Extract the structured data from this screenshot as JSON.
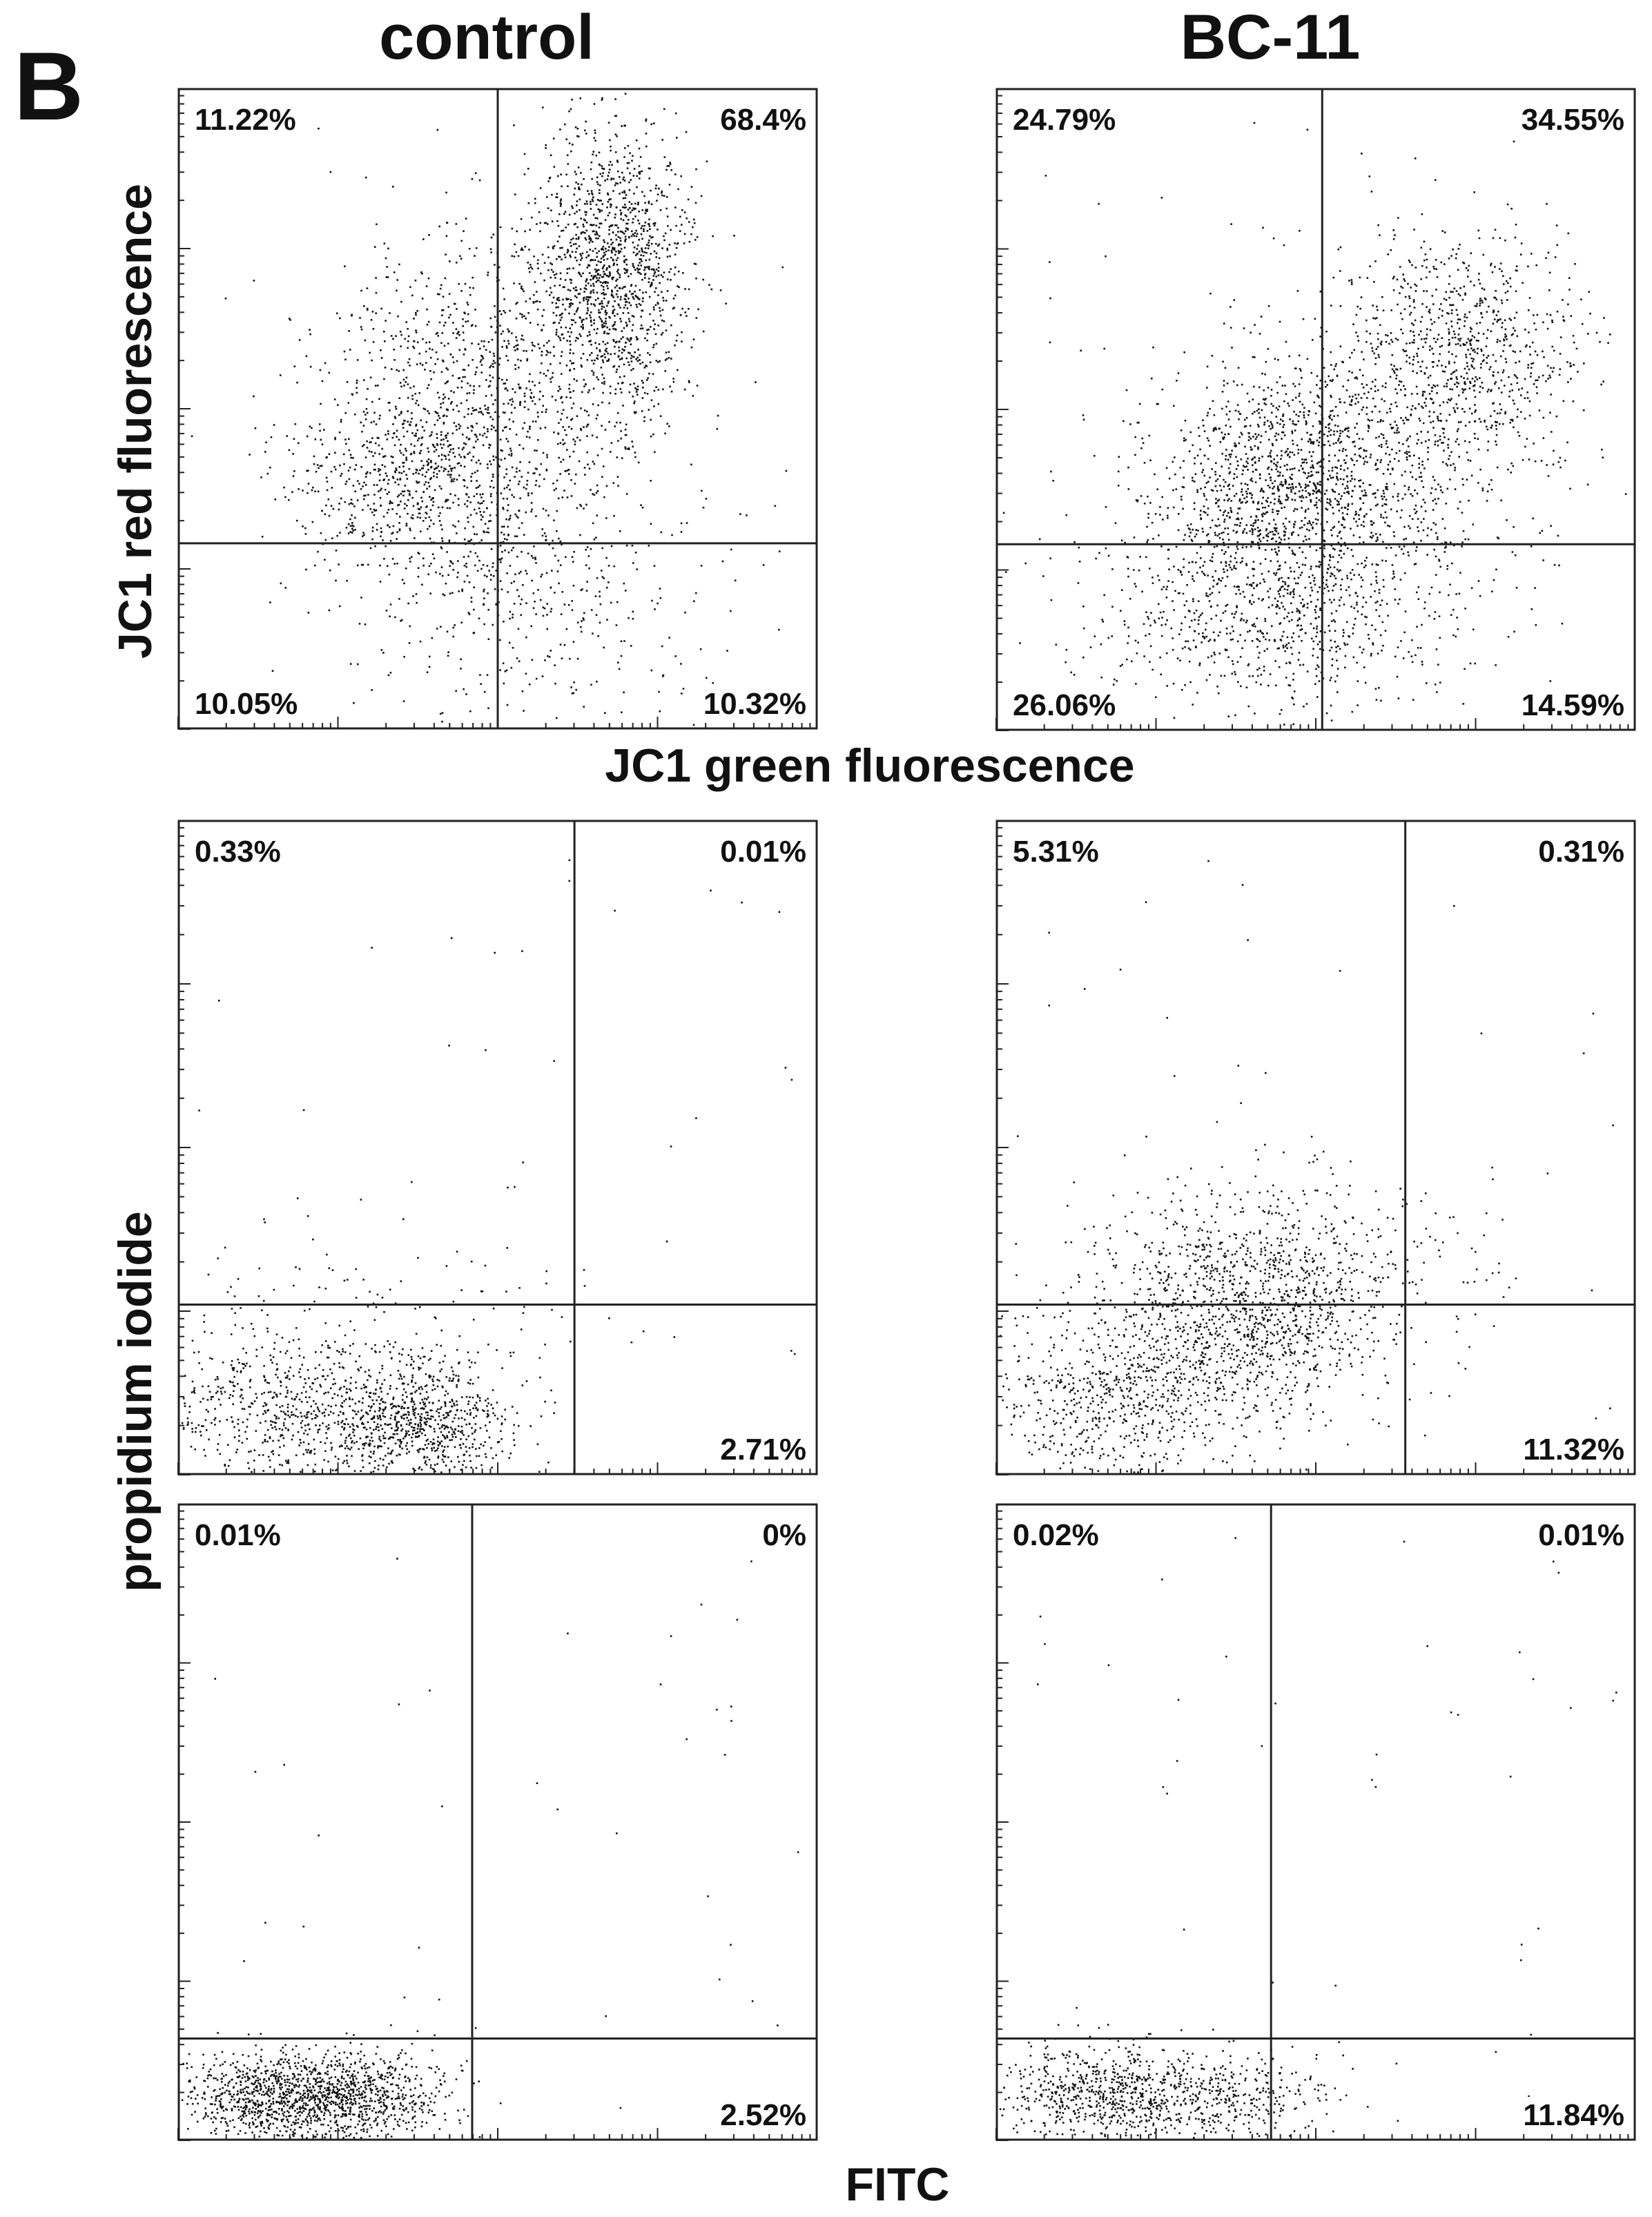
{
  "figure": {
    "panel_letter": "B",
    "columns": [
      "control",
      "BC-11"
    ],
    "jc1_y_label": "JC1 red fluorescence",
    "jc1_x_label": "JC1 green fluorescence",
    "pi_y_label": "propidium iodide",
    "fitc_x_label": "FITC"
  },
  "colors": {
    "dots": "#111111",
    "frame": "#222222",
    "background": "#ffffff"
  },
  "chart_data": [
    {
      "type": "scatter",
      "id": "jc1-control",
      "column": "control",
      "xlabel": "JC1 green fluorescence",
      "ylabel": "JC1 red fluorescence",
      "log_scale": true,
      "quadrant_percentages": {
        "upper_left": "11.22%",
        "upper_right": "68.4%",
        "lower_left": "10.05%",
        "lower_right": "10.32%"
      },
      "quadrant_split": {
        "x": 0.5,
        "y": 0.71
      },
      "clusters": [
        {
          "cx": 0.68,
          "cy": 0.28,
          "sx": 0.06,
          "sy": 0.11,
          "n": 1300
        },
        {
          "cx": 0.48,
          "cy": 0.48,
          "sx": 0.13,
          "sy": 0.13,
          "n": 1100
        },
        {
          "cx": 0.37,
          "cy": 0.62,
          "sx": 0.1,
          "sy": 0.08,
          "n": 600
        },
        {
          "cx": 0.55,
          "cy": 0.8,
          "sx": 0.14,
          "sy": 0.1,
          "n": 350
        }
      ]
    },
    {
      "type": "scatter",
      "id": "jc1-bc11",
      "column": "BC-11",
      "xlabel": "JC1 green fluorescence",
      "ylabel": "JC1 red fluorescence",
      "log_scale": true,
      "quadrant_percentages": {
        "upper_left": "24.79%",
        "upper_right": "34.55%",
        "lower_left": "26.06%",
        "lower_right": "14.59%"
      },
      "quadrant_split": {
        "x": 0.51,
        "y": 0.71
      },
      "clusters": [
        {
          "cx": 0.73,
          "cy": 0.4,
          "sx": 0.09,
          "sy": 0.09,
          "n": 800
        },
        {
          "cx": 0.45,
          "cy": 0.62,
          "sx": 0.11,
          "sy": 0.1,
          "n": 1300
        },
        {
          "cx": 0.42,
          "cy": 0.82,
          "sx": 0.15,
          "sy": 0.08,
          "n": 700
        },
        {
          "cx": 0.6,
          "cy": 0.58,
          "sx": 0.14,
          "sy": 0.12,
          "n": 500
        }
      ]
    },
    {
      "type": "scatter",
      "id": "pi-fitc-control-1",
      "column": "control",
      "xlabel": "FITC",
      "ylabel": "propidium iodide",
      "log_scale": true,
      "quadrant_percentages": {
        "upper_left": "0.33%",
        "upper_right": "0.01%",
        "lower_left": "",
        "lower_right": "2.71%"
      },
      "quadrant_split": {
        "x": 0.62,
        "y": 0.74
      },
      "clusters": [
        {
          "cx": 0.38,
          "cy": 0.92,
          "sx": 0.07,
          "sy": 0.05,
          "n": 700
        },
        {
          "cx": 0.17,
          "cy": 0.9,
          "sx": 0.12,
          "sy": 0.06,
          "n": 700
        },
        {
          "cx": 0.3,
          "cy": 0.78,
          "sx": 0.18,
          "sy": 0.08,
          "n": 150
        }
      ]
    },
    {
      "type": "scatter",
      "id": "pi-fitc-bc11-1",
      "column": "BC-11",
      "xlabel": "FITC",
      "ylabel": "propidium iodide",
      "log_scale": true,
      "quadrant_percentages": {
        "upper_left": "5.31%",
        "upper_right": "0.31%",
        "lower_left": "",
        "lower_right": "11.32%"
      },
      "quadrant_split": {
        "x": 0.64,
        "y": 0.74
      },
      "clusters": [
        {
          "cx": 0.4,
          "cy": 0.76,
          "sx": 0.11,
          "sy": 0.08,
          "n": 1100
        },
        {
          "cx": 0.18,
          "cy": 0.88,
          "sx": 0.1,
          "sy": 0.07,
          "n": 650
        },
        {
          "cx": 0.42,
          "cy": 0.66,
          "sx": 0.16,
          "sy": 0.07,
          "n": 350
        }
      ]
    },
    {
      "type": "scatter",
      "id": "pi-fitc-control-2",
      "column": "control",
      "xlabel": "FITC",
      "ylabel": "propidium iodide",
      "log_scale": true,
      "quadrant_percentages": {
        "upper_left": "0.01%",
        "upper_right": "0%",
        "lower_left": "",
        "lower_right": "2.52%"
      },
      "quadrant_split": {
        "x": 0.46,
        "y": 0.84
      },
      "clusters": [
        {
          "cx": 0.18,
          "cy": 0.93,
          "sx": 0.09,
          "sy": 0.035,
          "n": 1200
        },
        {
          "cx": 0.32,
          "cy": 0.93,
          "sx": 0.06,
          "sy": 0.035,
          "n": 300
        }
      ]
    },
    {
      "type": "scatter",
      "id": "pi-fitc-bc11-2",
      "column": "BC-11",
      "xlabel": "FITC",
      "ylabel": "propidium iodide",
      "log_scale": true,
      "quadrant_percentages": {
        "upper_left": "0.02%",
        "upper_right": "0.01%",
        "lower_left": "",
        "lower_right": "11.84%"
      },
      "quadrant_split": {
        "x": 0.43,
        "y": 0.84
      },
      "clusters": [
        {
          "cx": 0.14,
          "cy": 0.93,
          "sx": 0.08,
          "sy": 0.04,
          "n": 500
        },
        {
          "cx": 0.32,
          "cy": 0.93,
          "sx": 0.1,
          "sy": 0.035,
          "n": 550
        }
      ]
    }
  ]
}
